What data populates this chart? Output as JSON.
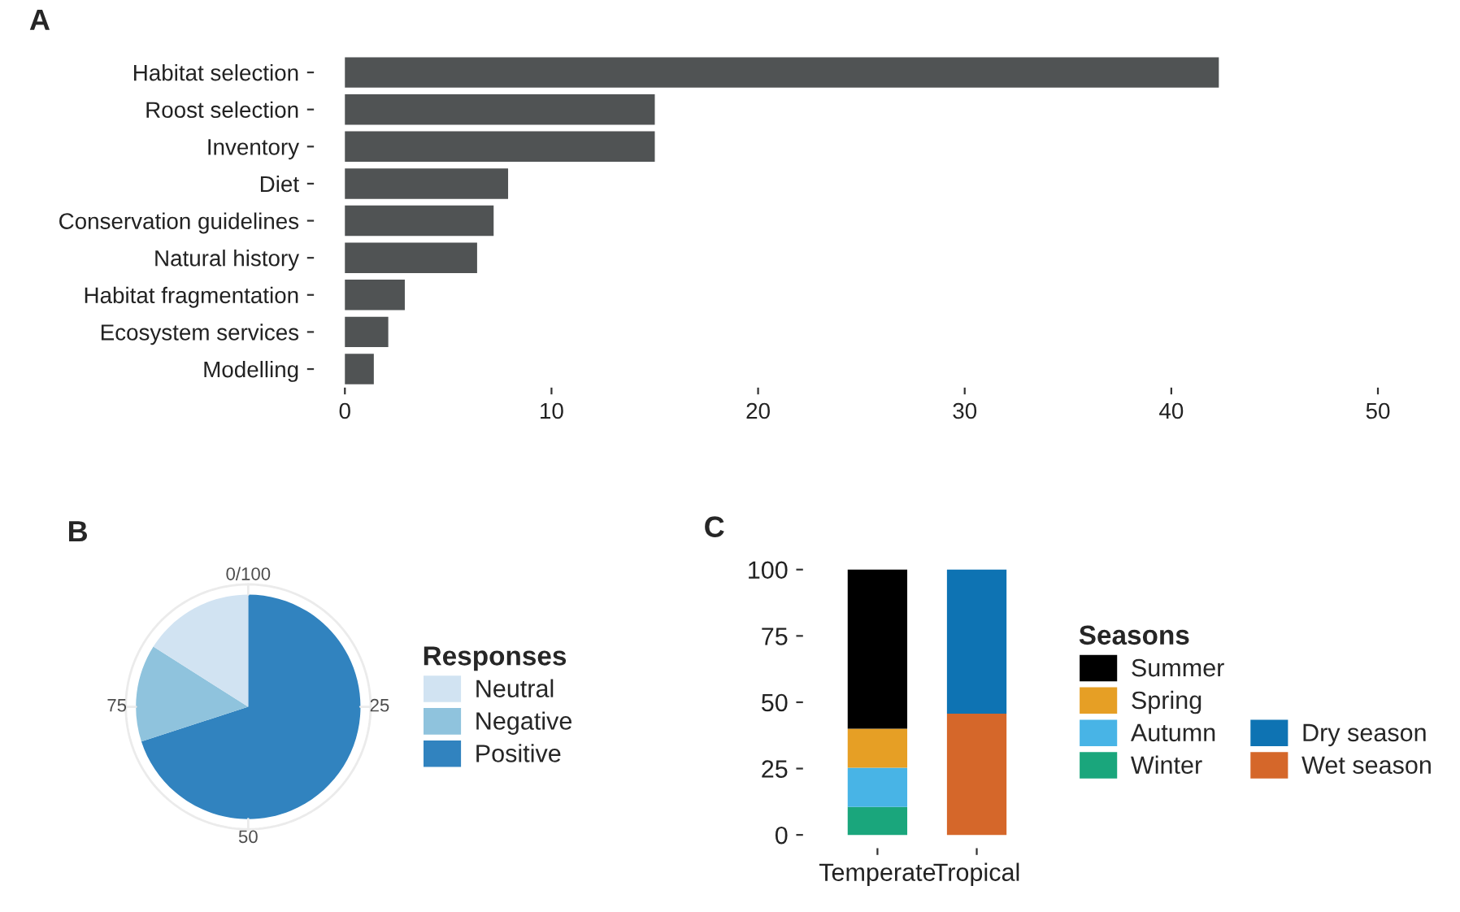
{
  "chart_data": [
    {
      "type": "bar",
      "title": "A",
      "orientation": "horizontal",
      "categories": [
        "Habitat selection",
        "Roost selection",
        "Inventory",
        "Diet",
        "Conservation guidelines",
        "Natural history",
        "Habitat fragmentation",
        "Ecosystem services",
        "Modelling"
      ],
      "values": [
        42.3,
        15.0,
        15.0,
        7.9,
        7.2,
        6.4,
        2.9,
        2.1,
        1.4
      ],
      "color": "#505354",
      "xlim": [
        0,
        50
      ],
      "xticks": [
        0,
        10,
        20,
        30,
        40,
        50
      ],
      "grid": false
    },
    {
      "type": "pie",
      "title": "B",
      "legend_title": "Responses",
      "legend": "right",
      "grid": true,
      "categories": [
        "Neutral",
        "Negative",
        "Positive"
      ],
      "values": [
        16,
        14,
        70
      ],
      "colors": [
        "#d1e3f2",
        "#8fc3dd",
        "#3183bf"
      ],
      "annotations": [
        "0/100",
        "25",
        "50",
        "75"
      ]
    },
    {
      "type": "bar",
      "title": "C",
      "stacked": true,
      "legend_title": "Seasons",
      "legend": "right",
      "grid": false,
      "categories": [
        "Temperate",
        "Tropical"
      ],
      "series": [
        {
          "name": "Winter",
          "color": "#1aa67c",
          "values": [
            10.5,
            null
          ]
        },
        {
          "name": "Autumn",
          "color": "#48b4e6",
          "values": [
            14.8,
            null
          ]
        },
        {
          "name": "Spring",
          "color": "#e69f25",
          "values": [
            14.7,
            null
          ]
        },
        {
          "name": "Summer",
          "color": "#000000",
          "values": [
            60.0,
            null
          ]
        },
        {
          "name": "Wet season",
          "color": "#d5672a",
          "values": [
            null,
            45.7
          ]
        },
        {
          "name": "Dry season",
          "color": "#0e73b3",
          "values": [
            null,
            54.3
          ]
        }
      ],
      "ylim": [
        0,
        100
      ],
      "yticks": [
        0,
        25,
        50,
        75,
        100
      ]
    }
  ]
}
